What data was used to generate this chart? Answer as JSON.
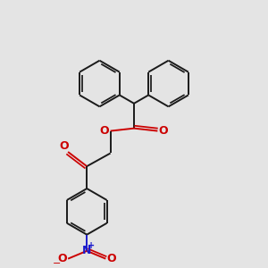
{
  "bg_color": "#e4e4e4",
  "bond_color": "#1a1a1a",
  "o_color": "#cc0000",
  "n_color": "#1a1acc",
  "bond_width": 1.4,
  "figsize": [
    3.0,
    3.0
  ],
  "dpi": 100,
  "xlim": [
    0,
    10
  ],
  "ylim": [
    0,
    10
  ]
}
